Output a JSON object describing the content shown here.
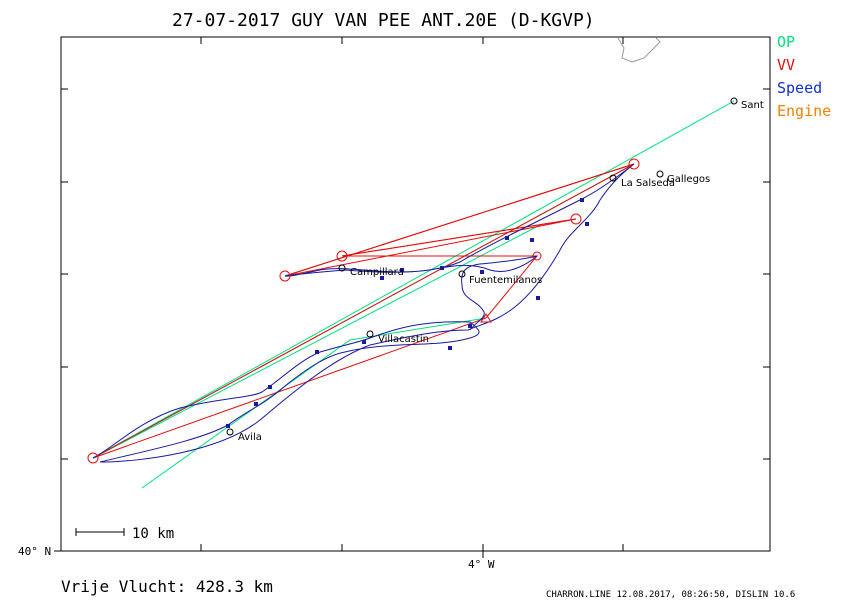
{
  "title": "27-07-2017   GUY VAN PEE   ANT.20E (D-KGVP)",
  "legend": [
    {
      "label": "OP",
      "color": "#00e080"
    },
    {
      "label": "VV",
      "color": "#e01010"
    },
    {
      "label": "Speed",
      "color": "#1030d0"
    },
    {
      "label": "Engine",
      "color": "#f08000"
    }
  ],
  "places": [
    "Sant",
    "La Salseda",
    "Gallegos",
    "Campillara",
    "Fuentemilanos",
    "Villacastin",
    "Avila"
  ],
  "axis": {
    "lat_label": "40° N",
    "lon_label": "4° W"
  },
  "scale_label": "10 km",
  "distance": "Vrije Vlucht:  428.3 km",
  "footer": "CHARRON.LINE 12.08.2017, 08:26:50, DISLIN 10.6",
  "colors": {
    "track": "#1a1aa0",
    "op": "#00e080",
    "vv": "#e01010",
    "frame": "#000000"
  }
}
